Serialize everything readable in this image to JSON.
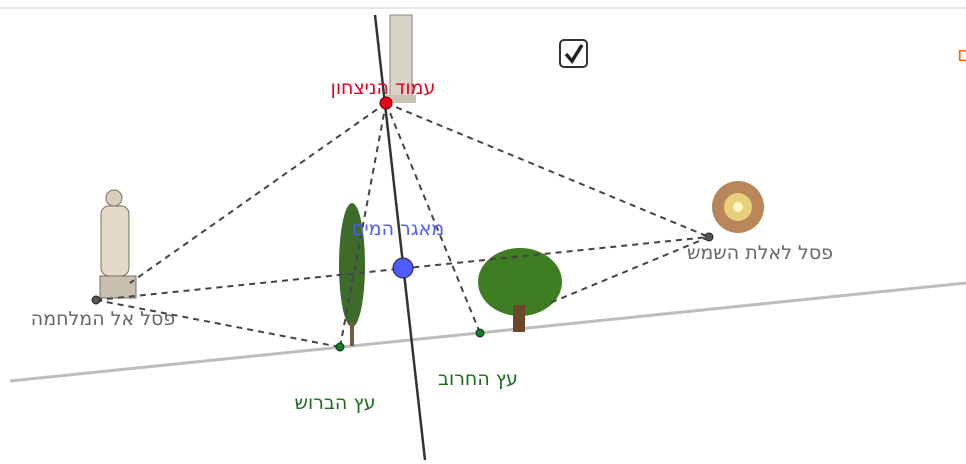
{
  "checkbox": {
    "label": "הצג אמצע השביל שבין שני הפסלים",
    "checked": true
  },
  "points": {
    "victory_column": "עמוד הניצחון",
    "water_reservoir": "מאגר המים",
    "sun_statue": "פסל לאלת השמש",
    "war_statue": "פסל אל המלחמה",
    "cypress": "עץ הברוש",
    "carob": "עץ החרוב"
  }
}
